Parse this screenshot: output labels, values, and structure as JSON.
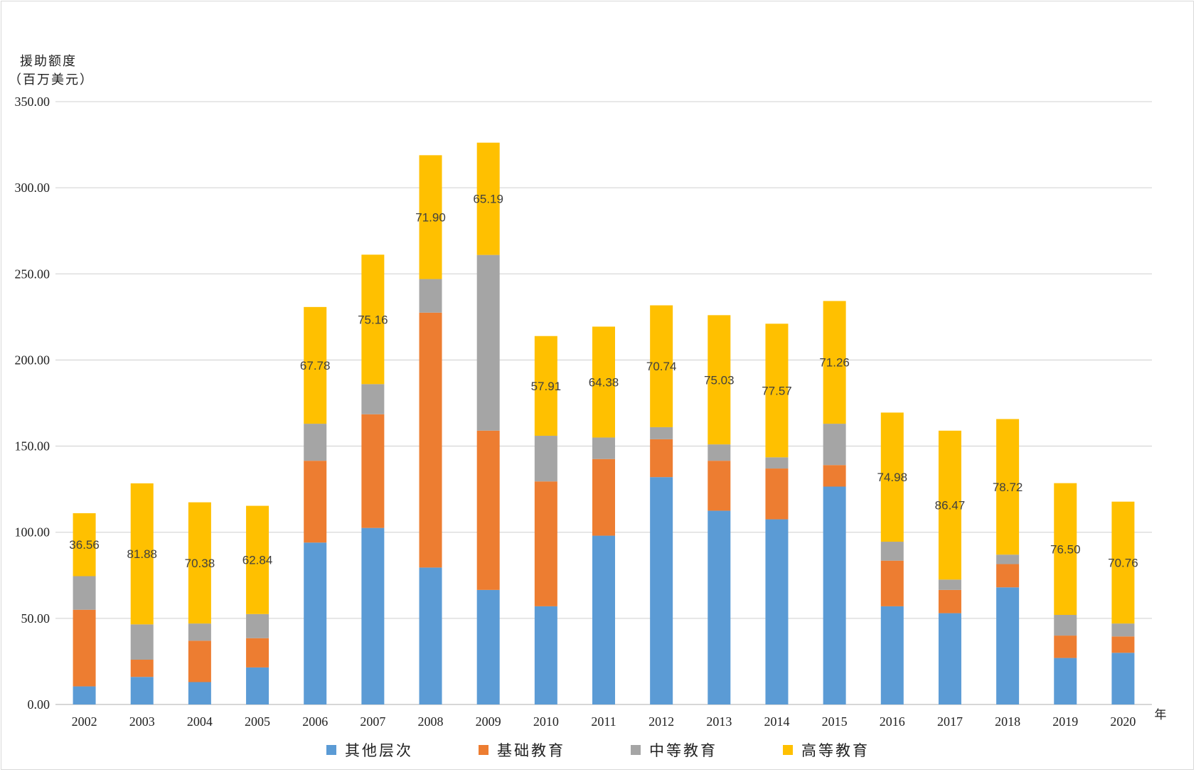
{
  "chart_data": {
    "type": "bar",
    "stacked": true,
    "title": "",
    "ylabel_line1": "援助额度",
    "ylabel_line2": "（百万美元）",
    "xlabel": "年",
    "ylim": [
      0,
      350
    ],
    "yticks": [
      "0.00",
      "50.00",
      "100.00",
      "150.00",
      "200.00",
      "250.00",
      "300.00",
      "350.00"
    ],
    "grid": true,
    "legend_position": "bottom",
    "categories": [
      "2002",
      "2003",
      "2004",
      "2005",
      "2006",
      "2007",
      "2008",
      "2009",
      "2010",
      "2011",
      "2012",
      "2013",
      "2014",
      "2015",
      "2016",
      "2017",
      "2018",
      "2019",
      "2020"
    ],
    "series": [
      {
        "name": "其他层次",
        "color": "#5b9bd5",
        "values": [
          10.5,
          16.0,
          13.0,
          21.5,
          94.0,
          102.5,
          79.5,
          66.5,
          57.0,
          98.0,
          132.0,
          112.5,
          107.5,
          126.5,
          57.0,
          53.0,
          68.0,
          27.0,
          30.0
        ]
      },
      {
        "name": "基础教育",
        "color": "#ed7d31",
        "values": [
          44.5,
          10.0,
          24.0,
          17.0,
          47.5,
          66.0,
          148.0,
          92.5,
          72.5,
          44.5,
          22.0,
          29.0,
          29.5,
          12.5,
          26.5,
          13.5,
          13.5,
          13.0,
          9.5
        ]
      },
      {
        "name": "中等教育",
        "color": "#a5a5a5",
        "values": [
          19.5,
          20.5,
          10.0,
          14.0,
          21.5,
          17.5,
          19.5,
          102.0,
          26.5,
          12.5,
          7.0,
          9.5,
          6.5,
          24.0,
          11.0,
          6.0,
          5.5,
          12.0,
          7.5
        ]
      },
      {
        "name": "高等教育",
        "color": "#ffc000",
        "values": [
          36.56,
          81.88,
          70.38,
          62.84,
          67.78,
          75.16,
          71.9,
          65.19,
          57.91,
          64.38,
          70.74,
          75.03,
          77.57,
          71.26,
          74.98,
          86.47,
          78.72,
          76.5,
          70.76
        ]
      }
    ],
    "data_labels": [
      "36.56",
      "81.88",
      "70.38",
      "62.84",
      "67.78",
      "75.16",
      "71.90",
      "65.19",
      "57.91",
      "64.38",
      "70.74",
      "75.03",
      "77.57",
      "71.26",
      "74.98",
      "86.47",
      "78.72",
      "76.50",
      "70.76"
    ]
  }
}
